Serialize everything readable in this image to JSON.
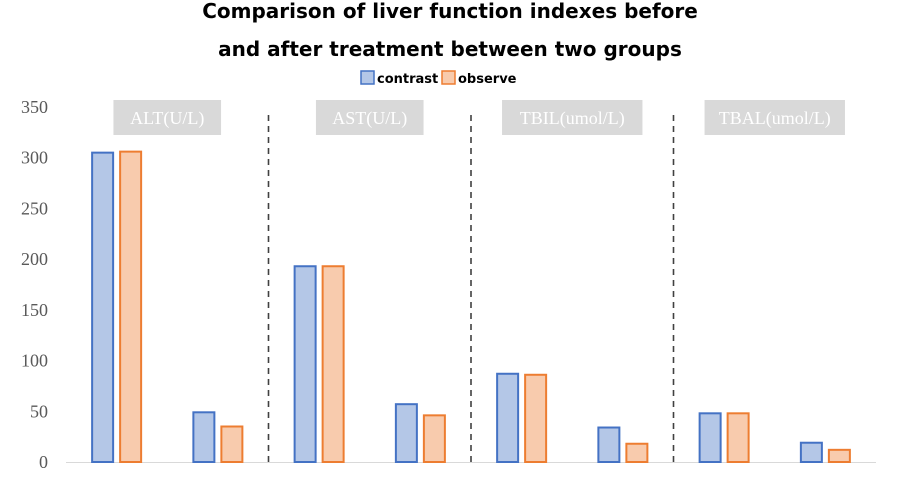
{
  "chart_data": {
    "type": "bar",
    "title_lines": [
      "Comparison of liver function indexes before",
      "and after treatment between two groups"
    ],
    "legend": [
      {
        "name": "contrast",
        "fill": "#b4c7e7",
        "stroke": "#4472c4"
      },
      {
        "name": "observe",
        "fill": "#f8cbad",
        "stroke": "#ed7d31"
      }
    ],
    "ylim": [
      0,
      350
    ],
    "yticks": [
      0,
      50,
      100,
      150,
      200,
      250,
      300,
      350
    ],
    "xlabel": "",
    "ylabel": "",
    "groups": [
      {
        "label": "ALT(U/L)",
        "subgroups": [
          {
            "contrast": 305,
            "observe": 306
          },
          {
            "contrast": 49,
            "observe": 35
          }
        ]
      },
      {
        "label": "AST(U/L)",
        "subgroups": [
          {
            "contrast": 193,
            "observe": 193
          },
          {
            "contrast": 57,
            "observe": 46
          }
        ]
      },
      {
        "label": "TBIL(umol/L)",
        "subgroups": [
          {
            "contrast": 87,
            "observe": 86
          },
          {
            "contrast": 34,
            "observe": 18
          }
        ]
      },
      {
        "label": "TBAL(umol/L)",
        "subgroups": [
          {
            "contrast": 48,
            "observe": 48
          },
          {
            "contrast": 19,
            "observe": 12
          }
        ]
      }
    ],
    "colors": {
      "axis": "#d9d9d9",
      "divider": "#404040",
      "tick_text": "#595959",
      "label_box": "#d9d9d9",
      "label_text": "#ffffff"
    }
  }
}
